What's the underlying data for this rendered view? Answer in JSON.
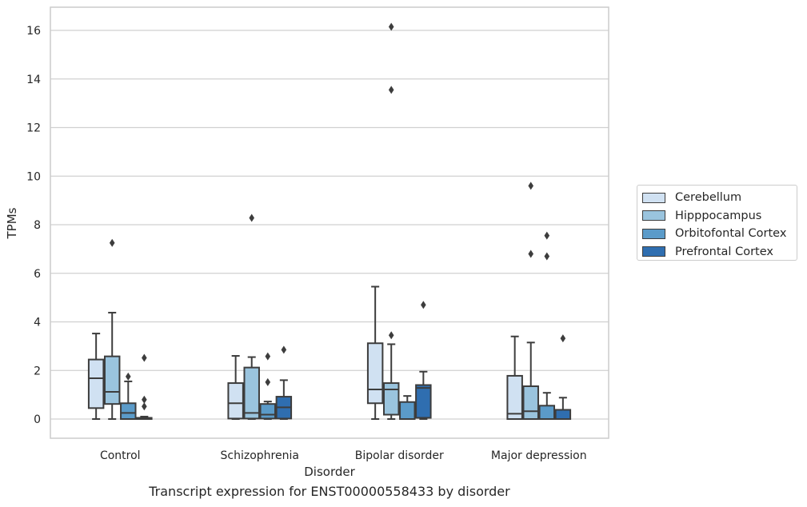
{
  "chart_data": {
    "type": "boxplot",
    "xlabel": "Disorder",
    "ylabel": "TPMs",
    "caption": "Transcript expression for ENST00000558433 by disorder",
    "ylim": [
      -0.8,
      16.9
    ],
    "yticks": [
      "0",
      "2",
      "4",
      "6",
      "8",
      "10",
      "12",
      "14",
      "16"
    ],
    "grid": "horizontal",
    "legend_position": "right",
    "categories": [
      "Control",
      "Schizophrenia",
      "Bipolar disorder",
      "Major depression"
    ],
    "series": [
      {
        "name": "Cerebellum",
        "color": "#d0e1f2",
        "boxes": [
          {
            "whislo": 0.0,
            "q1": 0.45,
            "med": 1.68,
            "q3": 2.45,
            "whishi": 3.52,
            "fliers": []
          },
          {
            "whislo": 0.0,
            "q1": 0.02,
            "med": 0.65,
            "q3": 1.48,
            "whishi": 2.6,
            "fliers": []
          },
          {
            "whislo": 0.0,
            "q1": 0.65,
            "med": 1.22,
            "q3": 3.12,
            "whishi": 5.45,
            "fliers": []
          },
          {
            "whislo": 0.0,
            "q1": 0.0,
            "med": 0.22,
            "q3": 1.78,
            "whishi": 3.4,
            "fliers": []
          }
        ]
      },
      {
        "name": "Hipppocampus",
        "color": "#9ac4de",
        "boxes": [
          {
            "whislo": 0.0,
            "q1": 0.62,
            "med": 1.12,
            "q3": 2.58,
            "whishi": 4.38,
            "fliers": [
              7.25
            ]
          },
          {
            "whislo": 0.0,
            "q1": 0.02,
            "med": 0.25,
            "q3": 2.12,
            "whishi": 2.55,
            "fliers": [
              8.28
            ]
          },
          {
            "whislo": 0.0,
            "q1": 0.18,
            "med": 1.22,
            "q3": 1.48,
            "whishi": 3.08,
            "fliers": [
              3.45,
              13.55,
              16.15
            ]
          },
          {
            "whislo": 0.0,
            "q1": 0.0,
            "med": 0.32,
            "q3": 1.35,
            "whishi": 3.15,
            "fliers": [
              6.8,
              9.6
            ]
          }
        ]
      },
      {
        "name": "Orbitofontal Cortex",
        "color": "#5b9bc9",
        "boxes": [
          {
            "whislo": 0.0,
            "q1": 0.0,
            "med": 0.25,
            "q3": 0.65,
            "whishi": 1.55,
            "fliers": [
              1.75
            ]
          },
          {
            "whislo": 0.0,
            "q1": 0.02,
            "med": 0.18,
            "q3": 0.62,
            "whishi": 0.72,
            "fliers": [
              1.52,
              2.58
            ]
          },
          {
            "whislo": 0.0,
            "q1": 0.0,
            "med": 0.0,
            "q3": 0.7,
            "whishi": 0.95,
            "fliers": []
          },
          {
            "whislo": 0.0,
            "q1": 0.0,
            "med": 0.0,
            "q3": 0.55,
            "whishi": 1.08,
            "fliers": [
              6.7,
              7.55
            ]
          }
        ]
      },
      {
        "name": "Prefrontal Cortex",
        "color": "#2f6eb0",
        "boxes": [
          {
            "whislo": 0.0,
            "q1": 0.0,
            "med": 0.0,
            "q3": 0.05,
            "whishi": 0.1,
            "fliers": [
              0.52,
              0.8,
              2.52
            ]
          },
          {
            "whislo": 0.0,
            "q1": 0.02,
            "med": 0.48,
            "q3": 0.92,
            "whishi": 1.6,
            "fliers": [
              2.85
            ]
          },
          {
            "whislo": 0.0,
            "q1": 0.05,
            "med": 1.28,
            "q3": 1.4,
            "whishi": 1.95,
            "fliers": [
              4.7
            ]
          },
          {
            "whislo": 0.0,
            "q1": 0.0,
            "med": 0.0,
            "q3": 0.38,
            "whishi": 0.88,
            "fliers": [
              3.32
            ]
          }
        ]
      }
    ]
  }
}
